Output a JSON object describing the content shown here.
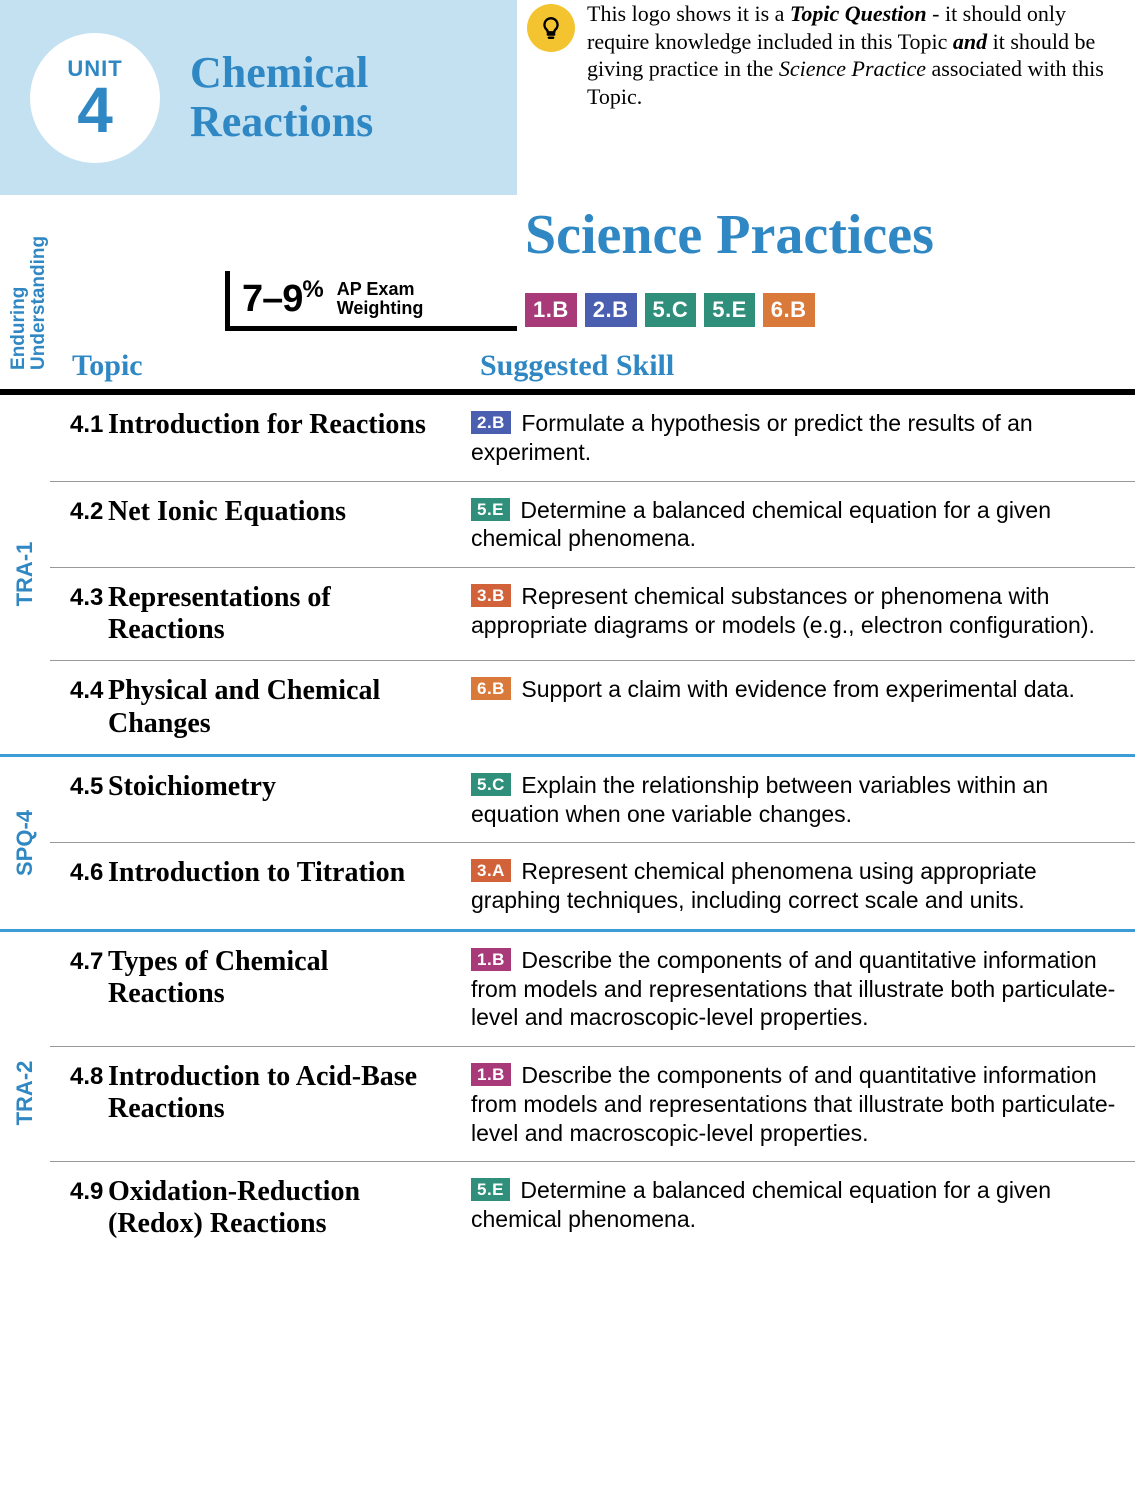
{
  "colors": {
    "header_bg": "#c4e1f2",
    "accent": "#2f87c3",
    "bulb_bg": "#f4c430",
    "badge_1B": "#a83a7a",
    "badge_2B": "#4a5fb0",
    "badge_3A": "#d1623a",
    "badge_3B": "#d1623a",
    "badge_5C": "#2f8f7a",
    "badge_5E": "#2f8f7a",
    "badge_6B": "#d97a3a"
  },
  "unit": {
    "label": "UNIT",
    "number": "4",
    "title_line1": "Chemical",
    "title_line2": "Reactions"
  },
  "note": {
    "text_html": "This logo shows it is a <strong>Topic Question</strong> - it should only require knowledge included in this Topic <strong>and</strong> it should be giving practice in the <em>Science Practice</em> associated with this Topic."
  },
  "sp_title": "Science Practices",
  "weighting": {
    "percent": "7–9",
    "pct_sign": "%",
    "label_line1": "AP Exam",
    "label_line2": "Weighting"
  },
  "top_badges": [
    {
      "code": "1.B",
      "color": "#a83a7a"
    },
    {
      "code": "2.B",
      "color": "#4a5fb0"
    },
    {
      "code": "5.C",
      "color": "#2f8f7a"
    },
    {
      "code": "5.E",
      "color": "#2f8f7a"
    },
    {
      "code": "6.B",
      "color": "#d97a3a"
    }
  ],
  "headers": {
    "eu": "Enduring\nUnderstanding",
    "topic": "Topic",
    "skill": "Suggested Skill"
  },
  "groups": [
    {
      "eu": "TRA-1",
      "rows": [
        {
          "num": "4.1",
          "topic": "Introduction for Reactions",
          "badge": "2.B",
          "badge_color": "#4a5fb0",
          "skill": "Formulate a hypothesis or predict the results of an experiment."
        },
        {
          "num": "4.2",
          "topic": "Net Ionic Equations",
          "badge": "5.E",
          "badge_color": "#2f8f7a",
          "skill": "Determine a balanced chemical equation for a given chemical phenomena."
        },
        {
          "num": "4.3",
          "topic": "Representations of Reactions",
          "badge": "3.B",
          "badge_color": "#d1623a",
          "skill": "Represent chemical substances or phenomena with appropriate diagrams or models (e.g., electron configuration)."
        },
        {
          "num": "4.4",
          "topic": "Physical and Chemical Changes",
          "badge": "6.B",
          "badge_color": "#d97a3a",
          "skill": "Support a claim with evidence from experimental data."
        }
      ]
    },
    {
      "eu": "SPQ-4",
      "rows": [
        {
          "num": "4.5",
          "topic": "Stoichiometry",
          "badge": "5.C",
          "badge_color": "#2f8f7a",
          "skill": "Explain the relationship between variables within an equation when one variable changes."
        },
        {
          "num": "4.6",
          "topic": "Introduction to Titration",
          "badge": "3.A",
          "badge_color": "#d1623a",
          "skill": "Represent chemical phenomena using appropriate graphing techniques, including correct scale and units."
        }
      ]
    },
    {
      "eu": "TRA-2",
      "rows": [
        {
          "num": "4.7",
          "topic": "Types of Chemical Reactions",
          "badge": "1.B",
          "badge_color": "#a83a7a",
          "skill": "Describe the components of and quantitative information from models and representations that illustrate both particulate-level and macroscopic-level properties."
        },
        {
          "num": "4.8",
          "topic": "Introduction to Acid-Base Reactions",
          "badge": "1.B",
          "badge_color": "#a83a7a",
          "skill": "Describe the components of and quantitative information from models and representations that illustrate both particulate-level and macroscopic-level properties."
        },
        {
          "num": "4.9",
          "topic": "Oxidation-Reduction (Redox) Reactions",
          "badge": "5.E",
          "badge_color": "#2f8f7a",
          "skill": "Determine a balanced chemical equation for a given chemical phenomena."
        }
      ]
    }
  ]
}
